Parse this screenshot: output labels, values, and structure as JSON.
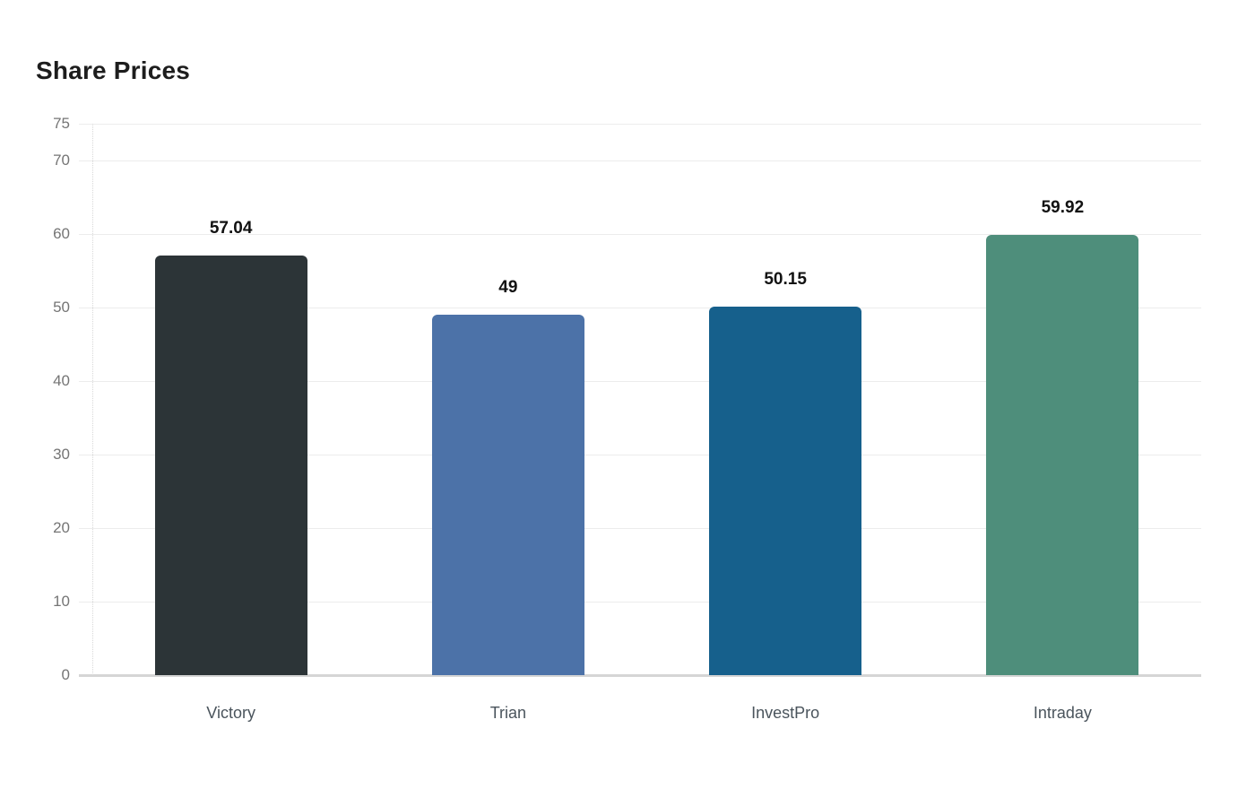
{
  "header": {
    "title": "Share Prices"
  },
  "chart_data": {
    "type": "bar",
    "title": "Share Prices",
    "categories": [
      "Victory",
      "Trian",
      "InvestPro",
      "Intraday"
    ],
    "values": [
      57.04,
      49,
      50.15,
      59.92
    ],
    "value_labels": [
      "57.04",
      "49",
      "50.15",
      "59.92"
    ],
    "bar_colors": [
      "#2c3437",
      "#4c72a8",
      "#16608c",
      "#4e8e7b"
    ],
    "xlabel": "",
    "ylabel": "",
    "ylim": [
      0,
      75
    ],
    "y_ticks": [
      0,
      10,
      20,
      30,
      40,
      50,
      60,
      70,
      75
    ],
    "grid": true,
    "legend_position": "none",
    "colors": {
      "background": "#ffffff",
      "gridline": "#ececec",
      "baseline": "#d5d5d5",
      "axis_dotted_line": "#d8d8d8",
      "y_tick_label": "#757575",
      "x_axis_label": "#4a545c",
      "value_label": "#121212",
      "title": "#1d1d1d"
    }
  }
}
